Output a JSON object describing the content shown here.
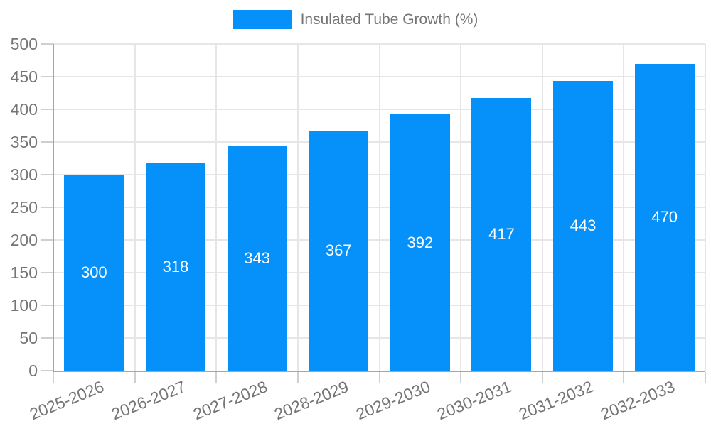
{
  "chart_data": {
    "type": "bar",
    "title": "",
    "legend": {
      "label": "Insulated Tube Growth (%)",
      "position": "top"
    },
    "categories": [
      "2025-2026",
      "2026-2027",
      "2027-2028",
      "2028-2029",
      "2029-2030",
      "2030-2031",
      "2031-2032",
      "2032-2033"
    ],
    "series": [
      {
        "name": "Insulated Tube Growth (%)",
        "values": [
          300,
          318,
          343,
          367,
          392,
          417,
          443,
          470
        ]
      }
    ],
    "value_labels": [
      300,
      318,
      343,
      367,
      392,
      417,
      443,
      470
    ],
    "xlabel": "",
    "ylabel": "",
    "ylim": [
      0,
      500
    ],
    "ytick_step": 50,
    "yticks": [
      0,
      50,
      100,
      150,
      200,
      250,
      300,
      350,
      400,
      450,
      500
    ],
    "grid": true,
    "grid_vertical": true,
    "x_label_rotation_deg": -22,
    "colors": {
      "bar": "#0691FA",
      "bar_value_text": "#FFFFFF",
      "axis": "#A6A6A6",
      "gridline": "#E6E6E6",
      "tick_mark": "#CFCFCF",
      "tick_text": "#757575",
      "legend_text": "#757575",
      "background": "#FFFFFF"
    }
  }
}
